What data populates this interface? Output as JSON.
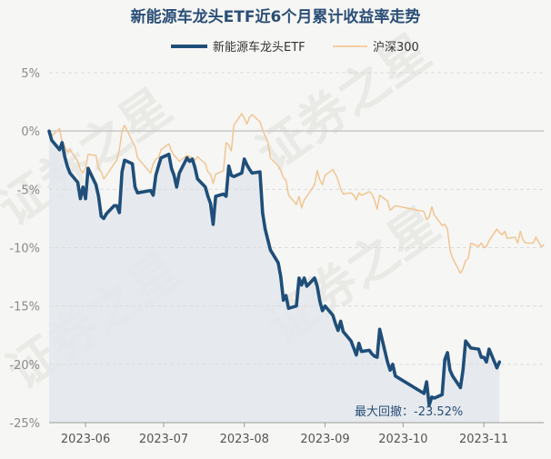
{
  "chart_data": {
    "type": "line",
    "title": "新能源车龙头ETF近6个月累计收益率走势",
    "xlabel": "",
    "ylabel": "",
    "y_unit": "%",
    "ylim": [
      -25,
      5
    ],
    "y_ticks": [
      5,
      0,
      -5,
      -10,
      -15,
      -20,
      -25
    ],
    "x_ticks": [
      "2023-06",
      "2023-07",
      "2023-08",
      "2023-09",
      "2023-10",
      "2023-11"
    ],
    "x_range": [
      "2023-05-18",
      "2023-11-24"
    ],
    "grid": "horizontal dashed",
    "legend_position": "top-center",
    "annotation": "最大回撤：-23.52%",
    "watermark": "证券之星",
    "colors": {
      "etf": "#1f4e79",
      "hs300": "#f2c28c",
      "fill": "#e3e8ec",
      "zero_line": "#c8c8c8",
      "grid": "#dcdcdc",
      "title": "#2a4e77",
      "background": "#f6f6f4"
    },
    "series": [
      {
        "name": "新能源车龙头ETF",
        "style": "thick",
        "points": [
          [
            "2023-05-18",
            0.0
          ],
          [
            "2023-05-19",
            -0.8
          ],
          [
            "2023-05-22",
            -1.6
          ],
          [
            "2023-05-23",
            -1.0
          ],
          [
            "2023-05-24",
            -2.2
          ],
          [
            "2023-05-25",
            -3.0
          ],
          [
            "2023-05-26",
            -3.6
          ],
          [
            "2023-05-29",
            -4.4
          ],
          [
            "2023-05-30",
            -5.8
          ],
          [
            "2023-05-31",
            -4.8
          ],
          [
            "2023-06-01",
            -5.8
          ],
          [
            "2023-06-02",
            -3.2
          ],
          [
            "2023-06-05",
            -4.6
          ],
          [
            "2023-06-06",
            -5.6
          ],
          [
            "2023-06-07",
            -7.3
          ],
          [
            "2023-06-08",
            -7.5
          ],
          [
            "2023-06-09",
            -7.1
          ],
          [
            "2023-06-12",
            -6.4
          ],
          [
            "2023-06-13",
            -6.4
          ],
          [
            "2023-06-14",
            -7.0
          ],
          [
            "2023-06-15",
            -3.5
          ],
          [
            "2023-06-16",
            -2.5
          ],
          [
            "2023-06-19",
            -2.8
          ],
          [
            "2023-06-20",
            -4.8
          ],
          [
            "2023-06-21",
            -5.3
          ],
          [
            "2023-06-26",
            -5.1
          ],
          [
            "2023-06-27",
            -5.5
          ],
          [
            "2023-06-28",
            -3.8
          ],
          [
            "2023-06-29",
            -3.0
          ],
          [
            "2023-06-30",
            -2.3
          ],
          [
            "2023-07-03",
            -2.0
          ],
          [
            "2023-07-04",
            -3.2
          ],
          [
            "2023-07-05",
            -3.8
          ],
          [
            "2023-07-06",
            -4.8
          ],
          [
            "2023-07-07",
            -3.6
          ],
          [
            "2023-07-10",
            -2.3
          ],
          [
            "2023-07-11",
            -2.6
          ],
          [
            "2023-07-12",
            -2.4
          ],
          [
            "2023-07-13",
            -3.1
          ],
          [
            "2023-07-14",
            -4.1
          ],
          [
            "2023-07-17",
            -4.8
          ],
          [
            "2023-07-18",
            -5.6
          ],
          [
            "2023-07-19",
            -6.2
          ],
          [
            "2023-07-20",
            -8.0
          ],
          [
            "2023-07-21",
            -5.6
          ],
          [
            "2023-07-24",
            -5.4
          ],
          [
            "2023-07-25",
            -5.6
          ],
          [
            "2023-07-26",
            -3.0
          ],
          [
            "2023-07-27",
            -3.8
          ],
          [
            "2023-07-28",
            -3.9
          ],
          [
            "2023-07-31",
            -3.6
          ],
          [
            "2023-08-01",
            -2.4
          ],
          [
            "2023-08-02",
            -2.9
          ],
          [
            "2023-08-03",
            -3.3
          ],
          [
            "2023-08-04",
            -3.6
          ],
          [
            "2023-08-07",
            -3.5
          ],
          [
            "2023-08-08",
            -7.0
          ],
          [
            "2023-08-09",
            -8.4
          ],
          [
            "2023-08-10",
            -9.3
          ],
          [
            "2023-08-11",
            -10.2
          ],
          [
            "2023-08-14",
            -11.3
          ],
          [
            "2023-08-15",
            -12.5
          ],
          [
            "2023-08-16",
            -14.5
          ],
          [
            "2023-08-17",
            -14.1
          ],
          [
            "2023-08-18",
            -15.2
          ],
          [
            "2023-08-21",
            -15.0
          ],
          [
            "2023-08-22",
            -12.6
          ],
          [
            "2023-08-23",
            -13.2
          ],
          [
            "2023-08-24",
            -12.6
          ],
          [
            "2023-08-25",
            -13.3
          ],
          [
            "2023-08-28",
            -12.6
          ],
          [
            "2023-08-29",
            -13.3
          ],
          [
            "2023-08-30",
            -14.6
          ],
          [
            "2023-08-31",
            -15.4
          ],
          [
            "2023-09-01",
            -15.0
          ],
          [
            "2023-09-04",
            -15.8
          ],
          [
            "2023-09-05",
            -16.5
          ],
          [
            "2023-09-06",
            -17.1
          ],
          [
            "2023-09-07",
            -16.3
          ],
          [
            "2023-09-08",
            -17.2
          ],
          [
            "2023-09-11",
            -18.0
          ],
          [
            "2023-09-12",
            -18.6
          ],
          [
            "2023-09-13",
            -19.2
          ],
          [
            "2023-09-14",
            -18.2
          ],
          [
            "2023-09-15",
            -18.9
          ],
          [
            "2023-09-18",
            -18.8
          ],
          [
            "2023-09-19",
            -19.1
          ],
          [
            "2023-09-20",
            -19.3
          ],
          [
            "2023-09-21",
            -19.4
          ],
          [
            "2023-09-22",
            -17.0
          ],
          [
            "2023-09-25",
            -19.8
          ],
          [
            "2023-09-26",
            -20.5
          ],
          [
            "2023-09-27",
            -20.0
          ],
          [
            "2023-09-28",
            -21.0
          ],
          [
            "2023-10-09",
            -22.5
          ],
          [
            "2023-10-10",
            -21.5
          ],
          [
            "2023-10-11",
            -23.5
          ],
          [
            "2023-10-12",
            -22.8
          ],
          [
            "2023-10-13",
            -22.9
          ],
          [
            "2023-10-16",
            -22.6
          ],
          [
            "2023-10-17",
            -19.6
          ],
          [
            "2023-10-18",
            -19.0
          ],
          [
            "2023-10-19",
            -20.5
          ],
          [
            "2023-10-20",
            -21.0
          ],
          [
            "2023-10-23",
            -22.0
          ],
          [
            "2023-10-24",
            -20.5
          ],
          [
            "2023-10-25",
            -18.0
          ],
          [
            "2023-10-26",
            -18.3
          ],
          [
            "2023-10-27",
            -18.6
          ],
          [
            "2023-10-30",
            -18.7
          ],
          [
            "2023-10-31",
            -19.4
          ],
          [
            "2023-11-01",
            -19.4
          ],
          [
            "2023-11-02",
            -19.8
          ],
          [
            "2023-11-03",
            -18.7
          ],
          [
            "2023-11-06",
            -20.3
          ],
          [
            "2023-11-07",
            -19.8
          ]
        ]
      },
      {
        "name": "沪深300",
        "style": "thin",
        "points": [
          [
            "2023-05-18",
            0.0
          ],
          [
            "2023-05-19",
            -0.4
          ],
          [
            "2023-05-22",
            0.2
          ],
          [
            "2023-05-23",
            -0.9
          ],
          [
            "2023-05-24",
            -1.3
          ],
          [
            "2023-05-25",
            -1.8
          ],
          [
            "2023-05-26",
            -1.6
          ],
          [
            "2023-05-29",
            -2.6
          ],
          [
            "2023-05-30",
            -3.3
          ],
          [
            "2023-05-31",
            -3.6
          ],
          [
            "2023-06-01",
            -3.2
          ],
          [
            "2023-06-02",
            -2.0
          ],
          [
            "2023-06-05",
            -2.1
          ],
          [
            "2023-06-06",
            -3.2
          ],
          [
            "2023-06-07",
            -3.5
          ],
          [
            "2023-06-08",
            -4.1
          ],
          [
            "2023-06-09",
            -3.8
          ],
          [
            "2023-06-12",
            -2.8
          ],
          [
            "2023-06-13",
            -2.5
          ],
          [
            "2023-06-14",
            -1.6
          ],
          [
            "2023-06-15",
            0.0
          ],
          [
            "2023-06-16",
            0.5
          ],
          [
            "2023-06-19",
            -0.9
          ],
          [
            "2023-06-20",
            -1.3
          ],
          [
            "2023-06-21",
            -2.3
          ],
          [
            "2023-06-26",
            -3.6
          ],
          [
            "2023-06-27",
            -2.8
          ],
          [
            "2023-06-28",
            -2.4
          ],
          [
            "2023-06-29",
            -2.3
          ],
          [
            "2023-06-30",
            -1.6
          ],
          [
            "2023-07-03",
            -1.1
          ],
          [
            "2023-07-04",
            -1.7
          ],
          [
            "2023-07-05",
            -2.1
          ],
          [
            "2023-07-06",
            -2.3
          ],
          [
            "2023-07-07",
            -2.6
          ],
          [
            "2023-07-10",
            -2.1
          ],
          [
            "2023-07-11",
            -2.2
          ],
          [
            "2023-07-12",
            -2.3
          ],
          [
            "2023-07-13",
            -2.5
          ],
          [
            "2023-07-14",
            -2.2
          ],
          [
            "2023-07-17",
            -2.8
          ],
          [
            "2023-07-18",
            -3.5
          ],
          [
            "2023-07-19",
            -3.7
          ],
          [
            "2023-07-20",
            -4.5
          ],
          [
            "2023-07-21",
            -3.7
          ],
          [
            "2023-07-24",
            -3.4
          ],
          [
            "2023-07-25",
            -1.0
          ],
          [
            "2023-07-26",
            -1.2
          ],
          [
            "2023-07-27",
            -1.7
          ],
          [
            "2023-07-28",
            0.5
          ],
          [
            "2023-07-31",
            1.5
          ],
          [
            "2023-08-01",
            1.1
          ],
          [
            "2023-08-02",
            0.6
          ],
          [
            "2023-08-03",
            1.2
          ],
          [
            "2023-08-04",
            1.4
          ],
          [
            "2023-08-07",
            0.8
          ],
          [
            "2023-08-08",
            0.1
          ],
          [
            "2023-08-09",
            -0.4
          ],
          [
            "2023-08-10",
            -0.9
          ],
          [
            "2023-08-11",
            -2.3
          ],
          [
            "2023-08-14",
            -3.0
          ],
          [
            "2023-08-15",
            -3.4
          ],
          [
            "2023-08-16",
            -4.0
          ],
          [
            "2023-08-17",
            -4.2
          ],
          [
            "2023-08-18",
            -5.5
          ],
          [
            "2023-08-21",
            -6.3
          ],
          [
            "2023-08-22",
            -5.6
          ],
          [
            "2023-08-23",
            -6.6
          ],
          [
            "2023-08-24",
            -5.9
          ],
          [
            "2023-08-25",
            -5.6
          ],
          [
            "2023-08-28",
            -4.6
          ],
          [
            "2023-08-29",
            -3.4
          ],
          [
            "2023-08-30",
            -4.2
          ],
          [
            "2023-08-31",
            -4.6
          ],
          [
            "2023-09-01",
            -3.8
          ],
          [
            "2023-09-04",
            -3.3
          ],
          [
            "2023-09-05",
            -3.7
          ],
          [
            "2023-09-06",
            -4.2
          ],
          [
            "2023-09-07",
            -5.0
          ],
          [
            "2023-09-08",
            -5.4
          ],
          [
            "2023-09-11",
            -5.3
          ],
          [
            "2023-09-12",
            -5.5
          ],
          [
            "2023-09-13",
            -5.9
          ],
          [
            "2023-09-14",
            -5.3
          ],
          [
            "2023-09-15",
            -5.5
          ],
          [
            "2023-09-18",
            -5.2
          ],
          [
            "2023-09-19",
            -5.4
          ],
          [
            "2023-09-20",
            -5.9
          ],
          [
            "2023-09-21",
            -6.7
          ],
          [
            "2023-09-22",
            -5.5
          ],
          [
            "2023-09-25",
            -6.0
          ],
          [
            "2023-09-26",
            -6.8
          ],
          [
            "2023-09-27",
            -6.6
          ],
          [
            "2023-09-28",
            -6.4
          ],
          [
            "2023-10-09",
            -6.9
          ],
          [
            "2023-10-10",
            -7.6
          ],
          [
            "2023-10-11",
            -7.4
          ],
          [
            "2023-10-12",
            -6.5
          ],
          [
            "2023-10-13",
            -7.2
          ],
          [
            "2023-10-16",
            -8.1
          ],
          [
            "2023-10-17",
            -8.0
          ],
          [
            "2023-10-18",
            -8.4
          ],
          [
            "2023-10-19",
            -10.2
          ],
          [
            "2023-10-20",
            -10.9
          ],
          [
            "2023-10-23",
            -12.2
          ],
          [
            "2023-10-24",
            -11.8
          ],
          [
            "2023-10-25",
            -11.1
          ],
          [
            "2023-10-26",
            -10.9
          ],
          [
            "2023-10-27",
            -9.6
          ],
          [
            "2023-10-30",
            -9.9
          ],
          [
            "2023-10-31",
            -9.6
          ],
          [
            "2023-11-01",
            -10.0
          ],
          [
            "2023-11-02",
            -9.9
          ],
          [
            "2023-11-03",
            -9.4
          ],
          [
            "2023-11-06",
            -8.4
          ],
          [
            "2023-11-07",
            -8.7
          ],
          [
            "2023-11-08",
            -8.9
          ],
          [
            "2023-11-09",
            -8.6
          ],
          [
            "2023-11-10",
            -9.2
          ],
          [
            "2023-11-13",
            -9.1
          ],
          [
            "2023-11-14",
            -9.6
          ],
          [
            "2023-11-15",
            -8.6
          ],
          [
            "2023-11-16",
            -9.3
          ],
          [
            "2023-11-17",
            -9.6
          ],
          [
            "2023-11-20",
            -9.6
          ],
          [
            "2023-11-21",
            -9.1
          ],
          [
            "2023-11-22",
            -9.5
          ],
          [
            "2023-11-23",
            -9.9
          ],
          [
            "2023-11-24",
            -9.8
          ]
        ]
      }
    ]
  }
}
